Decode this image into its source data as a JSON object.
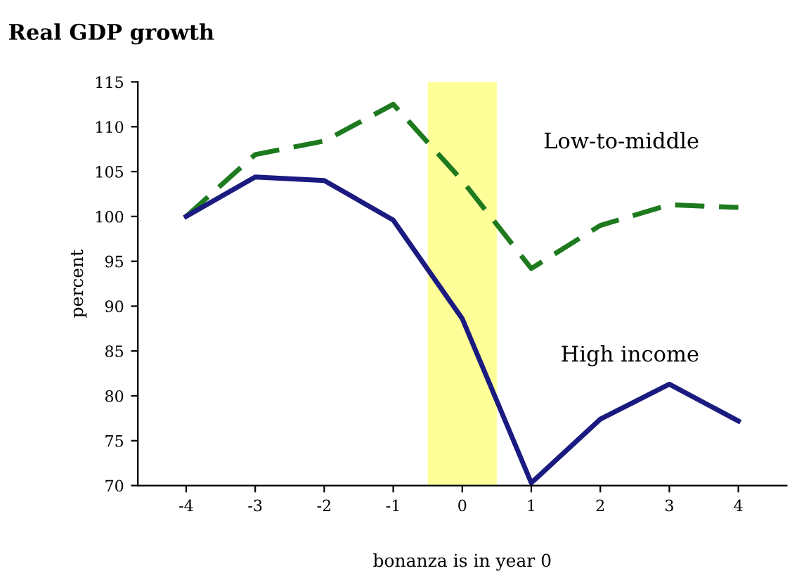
{
  "chart_data": {
    "type": "line",
    "title": "Real GDP growth",
    "xlabel": "bonanza is in year 0",
    "ylabel": "percent",
    "x": [
      -4,
      -3,
      -2,
      -1,
      0,
      1,
      2,
      3,
      4
    ],
    "series": [
      {
        "name": "Low-to-middle",
        "color": "#1e7a1e",
        "line_style": "dashed",
        "values": [
          100,
          106.9,
          108.4,
          112.5,
          104,
          94.2,
          99,
          101.3,
          101
        ]
      },
      {
        "name": "High income",
        "color": "#1a1a80",
        "line_style": "solid",
        "values": [
          100,
          104.4,
          104,
          99.6,
          88.6,
          70.3,
          77.4,
          81.3,
          77.2
        ]
      }
    ],
    "xlim": [
      -4.7,
      4.7
    ],
    "xticks": [
      -4,
      -3,
      -2,
      -1,
      0,
      1,
      2,
      3,
      4
    ],
    "ylim": [
      70,
      115
    ],
    "yticks": [
      70,
      75,
      80,
      85,
      90,
      95,
      100,
      105,
      110,
      115
    ],
    "bands": [
      {
        "axis": "x",
        "from": -0.5,
        "to": 0.5,
        "color": "#ffff99"
      }
    ],
    "grid": false,
    "legend": false,
    "marker": "none"
  }
}
